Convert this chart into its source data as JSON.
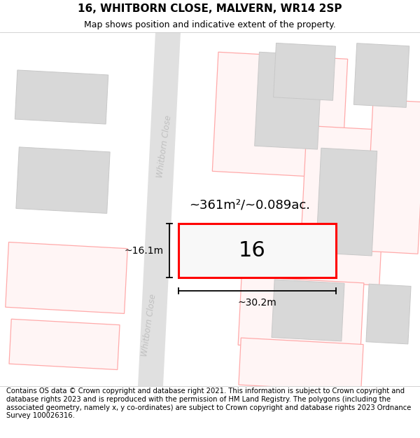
{
  "title": "16, WHITBORN CLOSE, MALVERN, WR14 2SP",
  "subtitle": "Map shows position and indicative extent of the property.",
  "footer": "Contains OS data © Crown copyright and database right 2021. This information is subject to Crown copyright and database rights 2023 and is reproduced with the permission of HM Land Registry. The polygons (including the associated geometry, namely x, y co-ordinates) are subject to Crown copyright and database rights 2023 Ordnance Survey 100026316.",
  "area_label": "~361m²/~0.089ac.",
  "width_label": "~30.2m",
  "height_label": "~16.1m",
  "number_label": "16",
  "building_fill": "#d8d8d8",
  "building_edge": "#c8c8c8",
  "red_outline": "#ff0000",
  "pink_outline": "#ffaaaa",
  "pink_fill": "#fff5f5",
  "road_label_color": "#c0c0c0",
  "title_fontsize": 11,
  "subtitle_fontsize": 9,
  "footer_fontsize": 7.2,
  "annotation_fontsize": 10
}
